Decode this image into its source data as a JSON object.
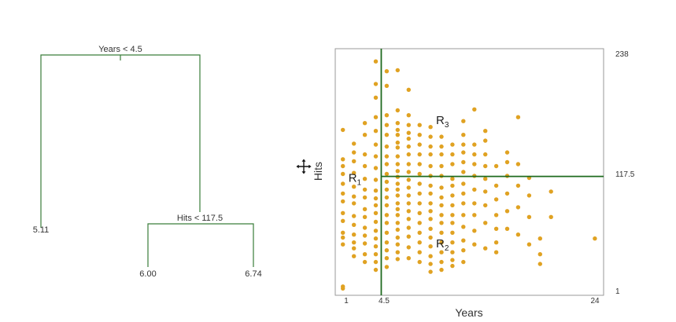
{
  "colors": {
    "tree": "#3a7d3a",
    "point": "#e0a222",
    "split": "#1f6b1f",
    "frame": "#999999",
    "text": "#333333"
  },
  "tree": {
    "root_label": "Years < 4.5",
    "split_label": "Hits < 117.5",
    "leaves": [
      "5.11",
      "6.00",
      "6.74"
    ]
  },
  "chart_data": {
    "type": "scatter",
    "xlabel": "Years",
    "ylabel": "Hits",
    "x_ticks": [
      "1",
      "4.5",
      "24"
    ],
    "y_ticks": [
      "238",
      "117.5",
      "1"
    ],
    "xlim": [
      0.3,
      24.8
    ],
    "ylim": [
      -4,
      248
    ],
    "splits": {
      "x": 4.5,
      "y": 117.5
    },
    "regions": [
      {
        "label": "R",
        "sub": "1",
        "x": 1.5,
        "y": 112
      },
      {
        "label": "R",
        "sub": "2",
        "x": 9.5,
        "y": 45
      },
      {
        "label": "R",
        "sub": "3",
        "x": 9.5,
        "y": 171
      }
    ],
    "series": [
      {
        "x": [
          1,
          1,
          1,
          1,
          1,
          1,
          1,
          1,
          1,
          1,
          1,
          1,
          1,
          1,
          2,
          2,
          2,
          2,
          2,
          2,
          2,
          2,
          2,
          2,
          2,
          2,
          2,
          3,
          3,
          3,
          3,
          3,
          3,
          3,
          3,
          3,
          3,
          3,
          3,
          3,
          3,
          4,
          4,
          4,
          4,
          4,
          4,
          4,
          4,
          4,
          4,
          4,
          4,
          4,
          4,
          4,
          4,
          4,
          4,
          4,
          4,
          5,
          5,
          5,
          5,
          5,
          5,
          5,
          5,
          5,
          5,
          5,
          5,
          5,
          5,
          5,
          5,
          5,
          5,
          5,
          5,
          6,
          6,
          6,
          6,
          6,
          6,
          6,
          6,
          6,
          6,
          6,
          6,
          6,
          6,
          6,
          6,
          6,
          6,
          6,
          6,
          6,
          6,
          6,
          7,
          7,
          7,
          7,
          7,
          7,
          7,
          7,
          7,
          7,
          7,
          7,
          7,
          7,
          7,
          7,
          7,
          7,
          7,
          8,
          8,
          8,
          8,
          8,
          8,
          8,
          8,
          8,
          8,
          8,
          8,
          8,
          8,
          8,
          9,
          9,
          9,
          9,
          9,
          9,
          9,
          9,
          9,
          9,
          9,
          9,
          9,
          9,
          9,
          9,
          9,
          10,
          10,
          10,
          10,
          10,
          10,
          10,
          10,
          10,
          10,
          10,
          10,
          10,
          10,
          10,
          11,
          11,
          11,
          11,
          11,
          11,
          11,
          11,
          11,
          11,
          11,
          11,
          11,
          11,
          12,
          12,
          12,
          12,
          12,
          12,
          12,
          12,
          12,
          12,
          12,
          12,
          12,
          12,
          13,
          13,
          13,
          13,
          13,
          13,
          13,
          13,
          13,
          13,
          14,
          14,
          14,
          14,
          14,
          14,
          14,
          14,
          14,
          15,
          15,
          15,
          15,
          15,
          15,
          15,
          16,
          16,
          16,
          16,
          16,
          16,
          17,
          17,
          17,
          17,
          17,
          18,
          18,
          18,
          18,
          19,
          19,
          19,
          20,
          20,
          24
        ],
        "y": [
          165,
          135,
          128,
          120,
          110,
          100,
          92,
          80,
          72,
          60,
          55,
          48,
          5,
          3,
          151,
          142,
          133,
          121,
          107,
          97,
          90,
          77,
          68,
          58,
          50,
          44,
          36,
          172,
          160,
          140,
          128,
          115,
          104,
          96,
          84,
          76,
          65,
          57,
          49,
          38,
          30,
          235,
          212,
          198,
          178,
          164,
          150,
          138,
          126,
          114,
          103,
          95,
          88,
          80,
          71,
          62,
          54,
          46,
          38,
          30,
          22,
          225,
          210,
          180,
          170,
          160,
          148,
          138,
          130,
          120,
          112,
          104,
          96,
          88,
          78,
          70,
          60,
          50,
          42,
          34,
          25,
          226,
          185,
          172,
          165,
          160,
          152,
          147,
          138,
          130,
          123,
          117,
          110,
          104,
          98,
          90,
          84,
          78,
          70,
          63,
          55,
          48,
          40,
          33,
          206,
          180,
          170,
          162,
          156,
          148,
          140,
          130,
          122,
          114,
          106,
          98,
          90,
          82,
          74,
          65,
          56,
          45,
          34,
          170,
          160,
          150,
          140,
          130,
          120,
          110,
          100,
          90,
          80,
          70,
          60,
          50,
          40,
          30,
          168,
          158,
          148,
          140,
          128,
          118,
          108,
          100,
          90,
          82,
          74,
          64,
          55,
          46,
          36,
          28,
          20,
          158,
          148,
          140,
          128,
          118,
          106,
          96,
          88,
          78,
          70,
          60,
          50,
          40,
          30,
          22,
          150,
          140,
          130,
          115,
          108,
          98,
          88,
          78,
          70,
          60,
          50,
          40,
          32,
          26,
          174,
          160,
          150,
          142,
          132,
          122,
          110,
          100,
          90,
          78,
          66,
          52,
          42,
          30,
          186,
          150,
          140,
          130,
          118,
          104,
          90,
          78,
          62,
          48,
          164,
          154,
          140,
          128,
          115,
          102,
          88,
          70,
          44,
          128,
          108,
          94,
          78,
          64,
          50,
          40,
          142,
          132,
          118,
          100,
          82,
          64,
          178,
          130,
          108,
          86,
          58,
          116,
          98,
          76,
          48,
          54,
          38,
          28,
          102,
          76,
          54
        ]
      }
    ]
  }
}
